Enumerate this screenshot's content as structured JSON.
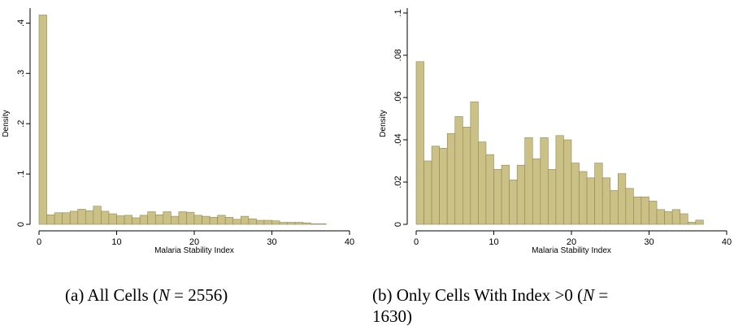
{
  "colors": {
    "bar_fill": "#cbc186",
    "bar_edge": "#8f8755",
    "axis": "#000000"
  },
  "chart_data": [
    {
      "type": "bar",
      "subtype": "histogram",
      "xlabel": "Malaria Stability Index",
      "ylabel": "Density",
      "xlim": [
        0,
        40
      ],
      "ylim": [
        0,
        0.42
      ],
      "xticks": [
        0,
        10,
        20,
        30,
        40
      ],
      "xtick_labels": [
        "0",
        "10",
        "20",
        "30",
        "40"
      ],
      "yticks": [
        0,
        0.1,
        0.2,
        0.3,
        0.4
      ],
      "ytick_labels": [
        "0",
        ".1",
        ".2",
        ".3",
        ".4"
      ],
      "grid": false,
      "bin_width": 1,
      "bin_starts": [
        0,
        1,
        2,
        3,
        4,
        5,
        6,
        7,
        8,
        9,
        10,
        11,
        12,
        13,
        14,
        15,
        16,
        17,
        18,
        19,
        20,
        21,
        22,
        23,
        24,
        25,
        26,
        27,
        28,
        29,
        30,
        31,
        32,
        33,
        34,
        35,
        36
      ],
      "values": [
        0.416,
        0.019,
        0.023,
        0.023,
        0.026,
        0.03,
        0.027,
        0.036,
        0.026,
        0.021,
        0.017,
        0.018,
        0.013,
        0.018,
        0.025,
        0.019,
        0.025,
        0.016,
        0.025,
        0.024,
        0.018,
        0.016,
        0.014,
        0.018,
        0.014,
        0.01,
        0.016,
        0.011,
        0.008,
        0.008,
        0.007,
        0.004,
        0.004,
        0.004,
        0.003,
        0.001,
        0.001
      ],
      "caption_prefix": "(a)  All Cells (",
      "caption_math": "N",
      "caption_suffix": " = 2556)"
    },
    {
      "type": "bar",
      "subtype": "histogram",
      "xlabel": "Malaria Stability Index",
      "ylabel": "Density",
      "xlim": [
        0,
        40
      ],
      "ylim": [
        0,
        0.1
      ],
      "xticks": [
        0,
        10,
        20,
        30,
        40
      ],
      "xtick_labels": [
        "0",
        "10",
        "20",
        "30",
        "40"
      ],
      "yticks": [
        0,
        0.02,
        0.04,
        0.06,
        0.08,
        0.1
      ],
      "ytick_labels": [
        "0",
        ".02",
        ".04",
        ".06",
        ".08",
        ".1"
      ],
      "grid": false,
      "bin_width": 1,
      "bin_starts": [
        0,
        1,
        2,
        3,
        4,
        5,
        6,
        7,
        8,
        9,
        10,
        11,
        12,
        13,
        14,
        15,
        16,
        17,
        18,
        19,
        20,
        21,
        22,
        23,
        24,
        25,
        26,
        27,
        28,
        29,
        30,
        31,
        32,
        33,
        34,
        35,
        36
      ],
      "values": [
        0.077,
        0.03,
        0.037,
        0.036,
        0.043,
        0.051,
        0.046,
        0.058,
        0.039,
        0.033,
        0.026,
        0.028,
        0.021,
        0.028,
        0.041,
        0.031,
        0.041,
        0.026,
        0.042,
        0.04,
        0.029,
        0.025,
        0.022,
        0.029,
        0.022,
        0.016,
        0.024,
        0.017,
        0.013,
        0.013,
        0.011,
        0.007,
        0.006,
        0.007,
        0.005,
        0.001,
        0.002
      ],
      "caption_prefix": "(b)  Only Cells With Index >0 (",
      "caption_math": "N",
      "caption_suffix": " =",
      "caption_line2": "1630)"
    }
  ]
}
